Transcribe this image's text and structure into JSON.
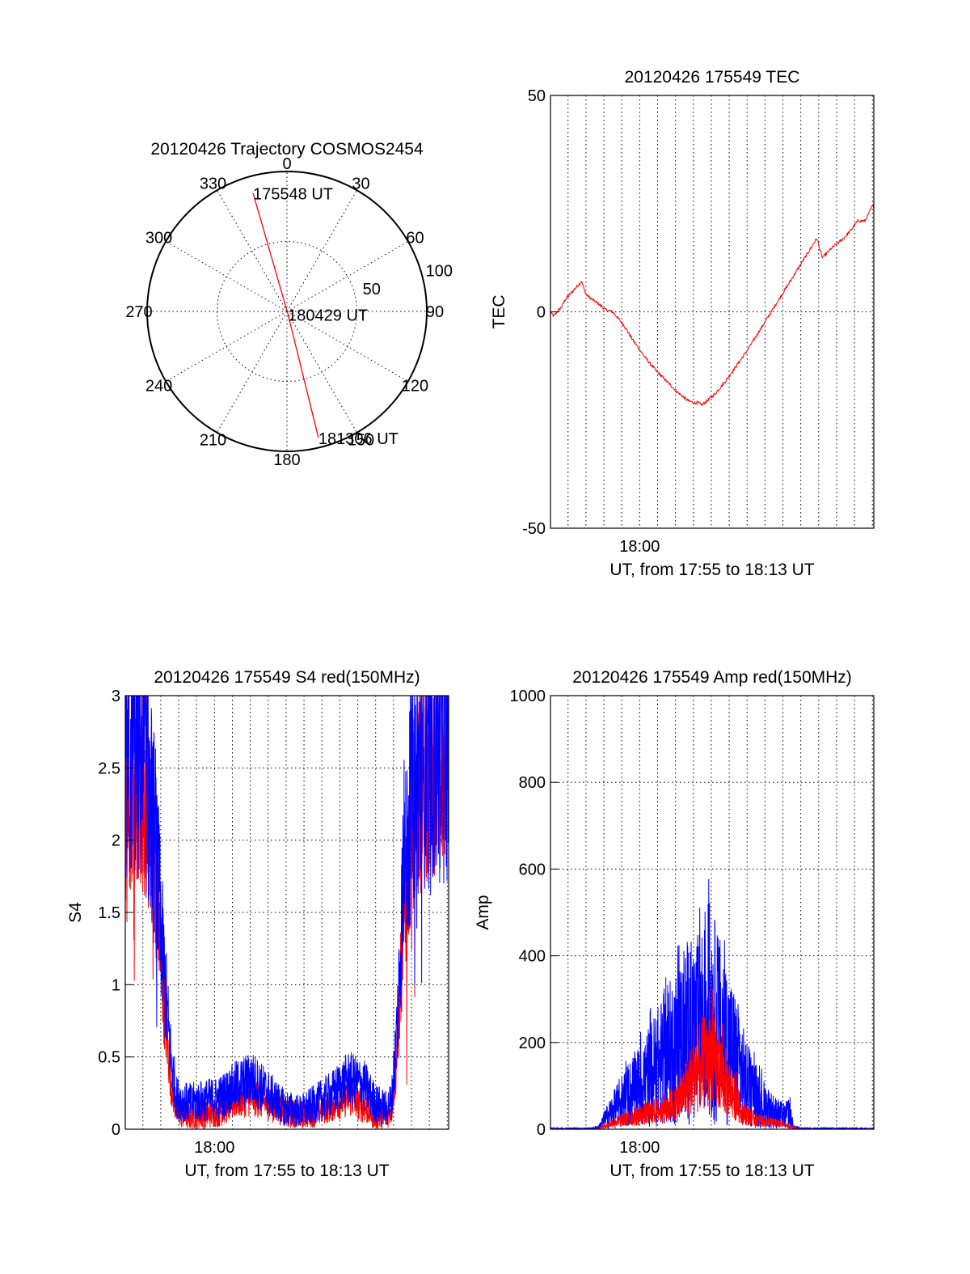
{
  "chart_data": [
    {
      "type": "polar",
      "title": "20120426 Trajectory COSMOS2454",
      "azimuth_labels": [
        "0",
        "30",
        "60",
        "90",
        "120",
        "150",
        "180",
        "210",
        "240",
        "270",
        "300",
        "330"
      ],
      "azimuth_ticks": [
        0,
        30,
        60,
        90,
        120,
        150,
        180,
        210,
        240,
        270,
        300,
        330
      ],
      "radial_labels": [
        "50",
        "100"
      ],
      "radial_ticks": [
        50,
        100
      ],
      "rmax": 100,
      "trajectory": {
        "color": "#ff0000",
        "points": [
          {
            "az": 344,
            "r": 88,
            "label": "175548 UT"
          },
          {
            "az": 160,
            "r": 2,
            "label": "180429 UT"
          },
          {
            "az": 166,
            "r": 93,
            "label": "181306 UT"
          }
        ]
      }
    },
    {
      "type": "line",
      "title": "20120426 175549 TEC",
      "xlabel": "UT, from 17:55 to 18:13 UT",
      "ylabel": "TEC",
      "xlim": [
        17.917,
        18.218
      ],
      "ylim": [
        -50,
        50
      ],
      "xtick_labels": [
        {
          "x": 18.0,
          "label": "18:00"
        }
      ],
      "yticks": [
        {
          "y": -50,
          "label": "-50"
        },
        {
          "y": 0,
          "label": "0"
        },
        {
          "y": 50,
          "label": "50"
        }
      ],
      "grid": true,
      "series": [
        {
          "color": "#ff0000",
          "noise": 0.35,
          "x": [
            17.9167,
            17.92,
            17.923,
            17.927,
            17.931,
            17.935,
            17.9385,
            17.942,
            17.946,
            17.95,
            17.955,
            17.961,
            17.968,
            17.975,
            17.985,
            17.995,
            18.005,
            18.015,
            18.025,
            18.035,
            18.045,
            18.05,
            18.054,
            18.058,
            18.063,
            18.07,
            18.08,
            18.09,
            18.1,
            18.11,
            18.12,
            18.13,
            18.14,
            18.15,
            18.16,
            18.165,
            18.17,
            18.18,
            18.19,
            18.197,
            18.203,
            18.21,
            18.2167
          ],
          "y": [
            0,
            -1,
            0,
            1,
            3,
            4,
            5,
            6,
            7,
            4,
            3,
            2,
            0.5,
            0,
            -3,
            -7,
            -10.5,
            -13.5,
            -16,
            -18.5,
            -20.5,
            -21,
            -21,
            -21.5,
            -20.5,
            -19,
            -16,
            -12.5,
            -9,
            -5,
            -1,
            3,
            7,
            11,
            15,
            17,
            12.5,
            15,
            17,
            19,
            21,
            21,
            24.5
          ]
        }
      ]
    },
    {
      "type": "line",
      "title": "20120426 175549 S4 red(150MHz)",
      "xlabel": "UT, from 17:55 to 18:13 UT",
      "ylabel": "S4",
      "xlim": [
        17.917,
        18.218
      ],
      "ylim": [
        0,
        3
      ],
      "xtick_labels": [
        {
          "x": 18.0,
          "label": "18:00"
        }
      ],
      "yticks": [
        {
          "y": 0,
          "label": "0"
        },
        {
          "y": 0.5,
          "label": "0.5"
        },
        {
          "y": 1,
          "label": "1"
        },
        {
          "y": 1.5,
          "label": "1.5"
        },
        {
          "y": 2,
          "label": "2"
        },
        {
          "y": 2.5,
          "label": "2.5"
        },
        {
          "y": 3,
          "label": "3"
        }
      ],
      "grid": true,
      "series": [
        {
          "color": "#ff0000",
          "noise": 0.28,
          "x": [
            17.9167,
            17.925,
            17.935,
            17.945,
            17.95,
            17.955,
            17.96,
            17.965,
            17.975,
            17.99,
            18.005,
            18.02,
            18.035,
            18.05,
            18.065,
            18.08,
            18.095,
            18.11,
            18.125,
            18.14,
            18.15,
            18.16,
            18.165,
            18.17,
            18.175,
            18.185,
            18.2,
            18.2167
          ],
          "y": [
            2.2,
            2.5,
            2.3,
            1.8,
            1.2,
            0.7,
            0.3,
            0.12,
            0.09,
            0.1,
            0.12,
            0.2,
            0.22,
            0.18,
            0.12,
            0.1,
            0.12,
            0.17,
            0.22,
            0.15,
            0.09,
            0.09,
            0.15,
            0.5,
            1.3,
            2.2,
            2.5,
            2.6
          ]
        },
        {
          "color": "#0000ff",
          "noise": 0.32,
          "x": [
            17.9167,
            17.925,
            17.935,
            17.945,
            17.95,
            17.955,
            17.96,
            17.965,
            17.975,
            17.99,
            18.005,
            18.02,
            18.035,
            18.05,
            18.065,
            18.08,
            18.095,
            18.11,
            18.125,
            18.14,
            18.15,
            18.16,
            18.165,
            18.17,
            18.175,
            18.185,
            18.2,
            18.2167
          ],
          "y": [
            2.4,
            2.6,
            2.5,
            2.0,
            1.4,
            0.9,
            0.45,
            0.22,
            0.18,
            0.2,
            0.22,
            0.3,
            0.35,
            0.25,
            0.15,
            0.12,
            0.18,
            0.25,
            0.35,
            0.3,
            0.18,
            0.14,
            0.2,
            0.7,
            1.6,
            2.4,
            2.6,
            2.6
          ]
        }
      ]
    },
    {
      "type": "line",
      "title": "20120426 175549 Amp red(150MHz)",
      "xlabel": "UT, from 17:55 to 18:13 UT",
      "ylabel": "Amp",
      "xlim": [
        17.917,
        18.218
      ],
      "ylim": [
        0,
        1000
      ],
      "xtick_labels": [
        {
          "x": 18.0,
          "label": "18:00"
        }
      ],
      "yticks": [
        {
          "y": 0,
          "label": "0"
        },
        {
          "y": 200,
          "label": "200"
        },
        {
          "y": 400,
          "label": "400"
        },
        {
          "y": 600,
          "label": "600"
        },
        {
          "y": 800,
          "label": "800"
        },
        {
          "y": 1000,
          "label": "1000"
        }
      ],
      "grid": true,
      "series": [
        {
          "color": "#0000ff",
          "noise": 0.6,
          "x": [
            17.9167,
            17.955,
            17.962,
            17.97,
            17.985,
            18.0,
            18.015,
            18.03,
            18.045,
            18.055,
            18.063,
            18.07,
            18.08,
            18.09,
            18.1,
            18.115,
            18.125,
            18.135,
            18.14,
            18.143,
            18.15,
            18.2167
          ],
          "y": [
            2,
            2,
            5,
            30,
            70,
            100,
            140,
            180,
            220,
            230,
            280,
            250,
            200,
            160,
            100,
            60,
            40,
            30,
            40,
            5,
            2,
            2
          ]
        },
        {
          "color": "#ff0000",
          "noise": 0.45,
          "x": [
            17.9167,
            17.96,
            17.965,
            17.975,
            17.99,
            18.005,
            18.02,
            18.035,
            18.045,
            18.055,
            18.065,
            18.075,
            18.085,
            18.095,
            18.11,
            18.125,
            18.135,
            18.14,
            18.15,
            18.2167
          ],
          "y": [
            0,
            0,
            5,
            15,
            25,
            35,
            45,
            60,
            100,
            140,
            170,
            130,
            90,
            40,
            20,
            15,
            10,
            5,
            0,
            0
          ]
        }
      ]
    }
  ]
}
